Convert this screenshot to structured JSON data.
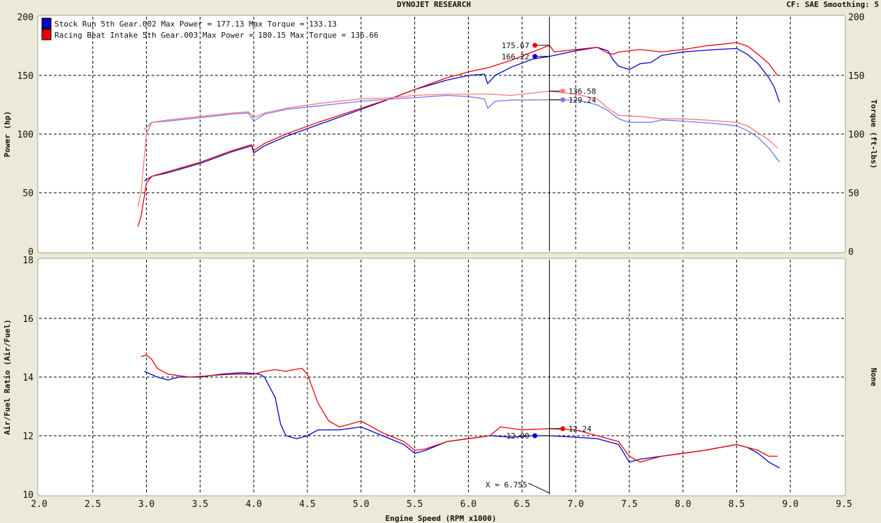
{
  "header": {
    "title": "DYNOJET RESEARCH",
    "right": "CF: SAE  Smoothing: 5"
  },
  "colors": {
    "stock": "#0000cc",
    "stock_light": "#7777ee",
    "racing": "#ee0000",
    "racing_light": "#ff7777",
    "panel": "#ffffff",
    "background": "#ece9d8",
    "grid": "#000000"
  },
  "chart_data": [
    {
      "type": "line",
      "panel": "top",
      "title": "DYNOJET RESEARCH",
      "xlabel": "Engine Speed (RPM x1000)",
      "ylabel": "Power (hp)",
      "ylabel_right": "Torque (ft-lbs)",
      "xlim": [
        2.0,
        9.5
      ],
      "ylim": [
        0,
        200
      ],
      "ylim_right": [
        0,
        200
      ],
      "grid": true,
      "legend_position": "top-left",
      "legend": [
        {
          "color": "#0000cc",
          "text": "Stock Run 5th Gear.002 Max Power = 177.13 Max Torque = 133.13"
        },
        {
          "color": "#ee0000",
          "text": "Racing Beat Intake 5th Gear.003 Max Power = 180.15 Max Torque = 136.66"
        }
      ],
      "cursor": {
        "x": 6.755,
        "label": "X = 6.755"
      },
      "series": [
        {
          "name": "Stock Run 5th Gear.002",
          "measure": "power",
          "color": "#0000cc",
          "points": [
            [
              2.98,
              60
            ],
            [
              3.05,
              64
            ],
            [
              3.2,
              67
            ],
            [
              3.5,
              75
            ],
            [
              3.8,
              85
            ],
            [
              3.98,
              90
            ],
            [
              4.0,
              84
            ],
            [
              4.1,
              90
            ],
            [
              4.3,
              98
            ],
            [
              4.6,
              108
            ],
            [
              5.0,
              121
            ],
            [
              5.3,
              131
            ],
            [
              5.5,
              138
            ],
            [
              5.8,
              146
            ],
            [
              6.0,
              150
            ],
            [
              6.15,
              151
            ],
            [
              6.18,
              143
            ],
            [
              6.25,
              150
            ],
            [
              6.4,
              157
            ],
            [
              6.6,
              164
            ],
            [
              6.755,
              166.2
            ],
            [
              7.0,
              171
            ],
            [
              7.2,
              174
            ],
            [
              7.3,
              171
            ],
            [
              7.35,
              163
            ],
            [
              7.4,
              158
            ],
            [
              7.5,
              155
            ],
            [
              7.6,
              160
            ],
            [
              7.7,
              161
            ],
            [
              7.8,
              167
            ],
            [
              8.0,
              170
            ],
            [
              8.3,
              172
            ],
            [
              8.5,
              173
            ],
            [
              8.6,
              168
            ],
            [
              8.7,
              160
            ],
            [
              8.8,
              148
            ],
            [
              8.85,
              140
            ],
            [
              8.9,
              127
            ]
          ]
        },
        {
          "name": "Racing Beat Intake 5th Gear.003",
          "measure": "power",
          "color": "#ee0000",
          "points": [
            [
              2.92,
              21
            ],
            [
              2.95,
              30
            ],
            [
              3.0,
              58
            ],
            [
              3.05,
              64
            ],
            [
              3.2,
              68
            ],
            [
              3.5,
              76
            ],
            [
              3.8,
              86
            ],
            [
              3.98,
              91
            ],
            [
              4.0,
              86
            ],
            [
              4.1,
              92
            ],
            [
              4.3,
              100
            ],
            [
              4.6,
              110
            ],
            [
              5.0,
              122
            ],
            [
              5.3,
              131
            ],
            [
              5.5,
              138
            ],
            [
              5.8,
              148
            ],
            [
              6.0,
              153
            ],
            [
              6.2,
              157
            ],
            [
              6.4,
              163
            ],
            [
              6.6,
              170
            ],
            [
              6.755,
              175.7
            ],
            [
              6.8,
              170
            ],
            [
              7.0,
              172
            ],
            [
              7.2,
              174
            ],
            [
              7.3,
              169
            ],
            [
              7.35,
              168
            ],
            [
              7.4,
              170
            ],
            [
              7.6,
              172
            ],
            [
              7.8,
              170
            ],
            [
              8.0,
              172
            ],
            [
              8.2,
              175
            ],
            [
              8.5,
              178
            ],
            [
              8.6,
              175
            ],
            [
              8.7,
              168
            ],
            [
              8.8,
              160
            ],
            [
              8.88,
              150
            ]
          ]
        },
        {
          "name": "Stock Run 5th Gear.002",
          "measure": "torque",
          "color": "#7777ee",
          "points": [
            [
              2.98,
              104
            ],
            [
              3.05,
              110
            ],
            [
              3.2,
              111
            ],
            [
              3.5,
              114
            ],
            [
              3.8,
              117
            ],
            [
              3.95,
              118
            ],
            [
              4.0,
              111
            ],
            [
              4.1,
              117
            ],
            [
              4.3,
              121
            ],
            [
              4.6,
              124
            ],
            [
              5.0,
              128
            ],
            [
              5.3,
              130
            ],
            [
              5.5,
              131
            ],
            [
              5.8,
              133
            ],
            [
              6.0,
              132
            ],
            [
              6.15,
              130
            ],
            [
              6.18,
              122
            ],
            [
              6.25,
              128
            ],
            [
              6.4,
              129
            ],
            [
              6.755,
              129.2
            ],
            [
              7.0,
              129
            ],
            [
              7.2,
              125
            ],
            [
              7.3,
              120
            ],
            [
              7.4,
              113
            ],
            [
              7.5,
              110
            ],
            [
              7.7,
              110
            ],
            [
              7.8,
              112
            ],
            [
              8.0,
              111
            ],
            [
              8.3,
              109
            ],
            [
              8.5,
              107
            ],
            [
              8.6,
              103
            ],
            [
              8.7,
              97
            ],
            [
              8.8,
              88
            ],
            [
              8.9,
              76
            ]
          ]
        },
        {
          "name": "Racing Beat Intake 5th Gear.003",
          "measure": "torque",
          "color": "#ff7777",
          "points": [
            [
              2.92,
              38
            ],
            [
              2.95,
              50
            ],
            [
              3.0,
              100
            ],
            [
              3.05,
              110
            ],
            [
              3.2,
              112
            ],
            [
              3.5,
              115
            ],
            [
              3.8,
              118
            ],
            [
              3.95,
              119
            ],
            [
              4.0,
              114
            ],
            [
              4.1,
              118
            ],
            [
              4.3,
              122
            ],
            [
              4.6,
              126
            ],
            [
              5.0,
              130
            ],
            [
              5.3,
              131
            ],
            [
              5.5,
              133
            ],
            [
              5.8,
              134
            ],
            [
              6.0,
              134
            ],
            [
              6.2,
              134
            ],
            [
              6.4,
              133
            ],
            [
              6.755,
              136.6
            ],
            [
              7.0,
              134
            ],
            [
              7.2,
              130
            ],
            [
              7.3,
              122
            ],
            [
              7.4,
              116
            ],
            [
              7.6,
              115
            ],
            [
              7.8,
              113
            ],
            [
              8.0,
              113
            ],
            [
              8.2,
              112
            ],
            [
              8.5,
              110
            ],
            [
              8.6,
              107
            ],
            [
              8.7,
              101
            ],
            [
              8.8,
              95
            ],
            [
              8.88,
              88
            ]
          ]
        }
      ],
      "markers": [
        {
          "label": "175.67",
          "x": 6.62,
          "y": 175.67,
          "color": "#ee0000",
          "side": "left"
        },
        {
          "label": "166.22",
          "x": 6.62,
          "y": 166.22,
          "color": "#0000cc",
          "side": "left"
        },
        {
          "label": "136.58",
          "x": 6.88,
          "y": 136.58,
          "color": "#ff7777",
          "side": "right"
        },
        {
          "label": "129.24",
          "x": 6.88,
          "y": 129.24,
          "color": "#7777ee",
          "side": "right"
        }
      ],
      "xticks": [
        "2.0",
        "2.5",
        "3.0",
        "3.5",
        "4.0",
        "4.5",
        "5.0",
        "5.5",
        "6.0",
        "6.5",
        "7.0",
        "7.5",
        "8.0",
        "8.5",
        "9.0",
        "9.5"
      ],
      "yticks": [
        "0",
        "50",
        "100",
        "150",
        "200"
      ],
      "yticks_right": [
        "0",
        "50",
        "100",
        "150",
        "200"
      ]
    },
    {
      "type": "line",
      "panel": "bottom",
      "xlabel": "Engine Speed (RPM x1000)",
      "ylabel": "Air/Fuel Ratio (Air/Fuel)",
      "ylabel_right": "None",
      "xlim": [
        2.0,
        9.5
      ],
      "ylim": [
        10,
        18
      ],
      "grid": true,
      "cursor": {
        "x": 6.755,
        "label": "X = 6.755"
      },
      "series": [
        {
          "name": "Stock Run 5th Gear.002",
          "color": "#0000cc",
          "points": [
            [
              2.98,
              14.2
            ],
            [
              3.1,
              14.0
            ],
            [
              3.2,
              13.9
            ],
            [
              3.3,
              14.0
            ],
            [
              3.4,
              14.0
            ],
            [
              3.5,
              14.0
            ],
            [
              3.7,
              14.1
            ],
            [
              3.9,
              14.15
            ],
            [
              4.05,
              14.1
            ],
            [
              4.1,
              14.0
            ],
            [
              4.2,
              13.3
            ],
            [
              4.25,
              12.4
            ],
            [
              4.3,
              12.0
            ],
            [
              4.4,
              11.9
            ],
            [
              4.5,
              12.0
            ],
            [
              4.6,
              12.2
            ],
            [
              4.8,
              12.2
            ],
            [
              5.0,
              12.3
            ],
            [
              5.2,
              12.0
            ],
            [
              5.4,
              11.7
            ],
            [
              5.5,
              11.4
            ],
            [
              5.6,
              11.5
            ],
            [
              5.8,
              11.8
            ],
            [
              6.0,
              11.9
            ],
            [
              6.2,
              12.0
            ],
            [
              6.4,
              11.95
            ],
            [
              6.6,
              12.0
            ],
            [
              6.755,
              12.0
            ],
            [
              7.0,
              11.95
            ],
            [
              7.2,
              11.9
            ],
            [
              7.3,
              11.8
            ],
            [
              7.4,
              11.7
            ],
            [
              7.5,
              11.1
            ],
            [
              7.6,
              11.2
            ],
            [
              7.8,
              11.3
            ],
            [
              8.0,
              11.4
            ],
            [
              8.2,
              11.5
            ],
            [
              8.5,
              11.7
            ],
            [
              8.6,
              11.6
            ],
            [
              8.7,
              11.4
            ],
            [
              8.8,
              11.1
            ],
            [
              8.9,
              10.9
            ]
          ]
        },
        {
          "name": "Racing Beat Intake 5th Gear.003",
          "color": "#ee0000",
          "points": [
            [
              2.95,
              14.7
            ],
            [
              3.0,
              14.75
            ],
            [
              3.05,
              14.6
            ],
            [
              3.1,
              14.3
            ],
            [
              3.2,
              14.1
            ],
            [
              3.4,
              14.0
            ],
            [
              3.6,
              14.05
            ],
            [
              3.8,
              14.1
            ],
            [
              4.0,
              14.1
            ],
            [
              4.1,
              14.2
            ],
            [
              4.2,
              14.25
            ],
            [
              4.3,
              14.2
            ],
            [
              4.45,
              14.3
            ],
            [
              4.5,
              14.1
            ],
            [
              4.6,
              13.1
            ],
            [
              4.7,
              12.5
            ],
            [
              4.8,
              12.3
            ],
            [
              5.0,
              12.5
            ],
            [
              5.2,
              12.1
            ],
            [
              5.4,
              11.8
            ],
            [
              5.5,
              11.5
            ],
            [
              5.6,
              11.55
            ],
            [
              5.8,
              11.8
            ],
            [
              6.0,
              11.9
            ],
            [
              6.2,
              12.0
            ],
            [
              6.3,
              12.3
            ],
            [
              6.5,
              12.2
            ],
            [
              6.755,
              12.24
            ],
            [
              7.0,
              12.2
            ],
            [
              7.2,
              12.0
            ],
            [
              7.3,
              11.9
            ],
            [
              7.4,
              11.8
            ],
            [
              7.5,
              11.3
            ],
            [
              7.6,
              11.1
            ],
            [
              7.8,
              11.3
            ],
            [
              8.0,
              11.4
            ],
            [
              8.2,
              11.5
            ],
            [
              8.5,
              11.7
            ],
            [
              8.6,
              11.6
            ],
            [
              8.7,
              11.5
            ],
            [
              8.8,
              11.3
            ],
            [
              8.88,
              11.3
            ]
          ]
        }
      ],
      "markers": [
        {
          "label": "12.00",
          "x": 6.62,
          "y": 12.0,
          "color": "#0000cc",
          "side": "left"
        },
        {
          "label": "12.24",
          "x": 6.88,
          "y": 12.24,
          "color": "#ee0000",
          "side": "right"
        }
      ],
      "yticks": [
        "10",
        "12",
        "14",
        "16",
        "18"
      ]
    }
  ]
}
